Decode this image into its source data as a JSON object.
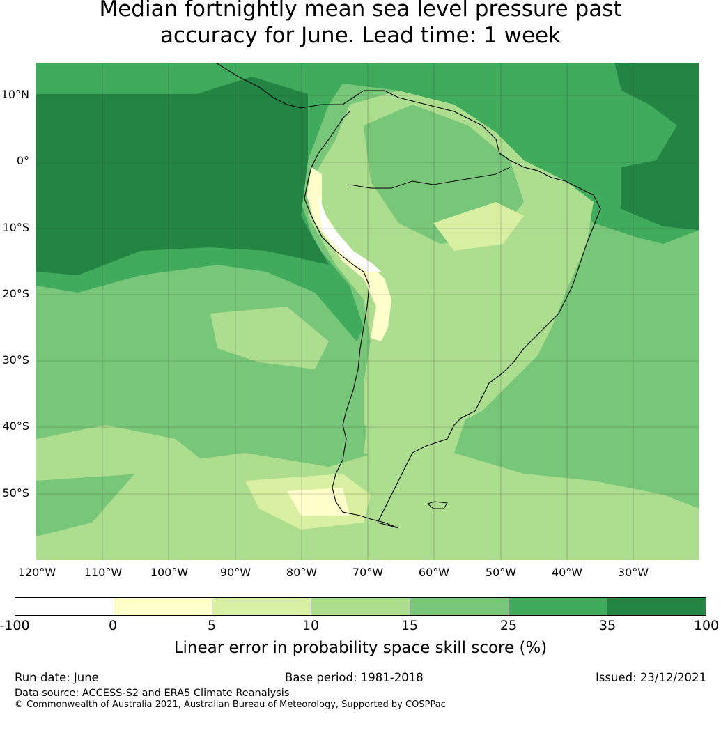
{
  "title_line1": "Median fortnightly mean sea level pressure past",
  "title_line2": "accuracy for June. Lead time: 1 week",
  "map": {
    "lat_labels": [
      "10°N",
      "0°",
      "10°S",
      "20°S",
      "30°S",
      "40°S",
      "50°S"
    ],
    "lon_labels": [
      "120°W",
      "110°W",
      "100°W",
      "90°W",
      "80°W",
      "70°W",
      "60°W",
      "50°W",
      "40°W",
      "30°W"
    ],
    "region": "South America"
  },
  "colorbar": {
    "ticks": [
      "-100",
      "0",
      "5",
      "10",
      "15",
      "25",
      "35",
      "100"
    ],
    "colors": [
      "#ffffff",
      "#ffffcc",
      "#d9f0a3",
      "#addd8e",
      "#78c679",
      "#41ab5d",
      "#238443"
    ],
    "label": "Linear error in probability space skill score (%)"
  },
  "footer": {
    "run_date": "Run date: June",
    "base_period": "Base period: 1981-2018",
    "issued": "Issued: 23/12/2021",
    "data_source": "Data source: ACCESS-S2 and ERA5 Climate Reanalysis",
    "copyright": "© Commonwealth of Australia 2021, Australian Bureau of Meteorology, Supported by COSPPac"
  }
}
